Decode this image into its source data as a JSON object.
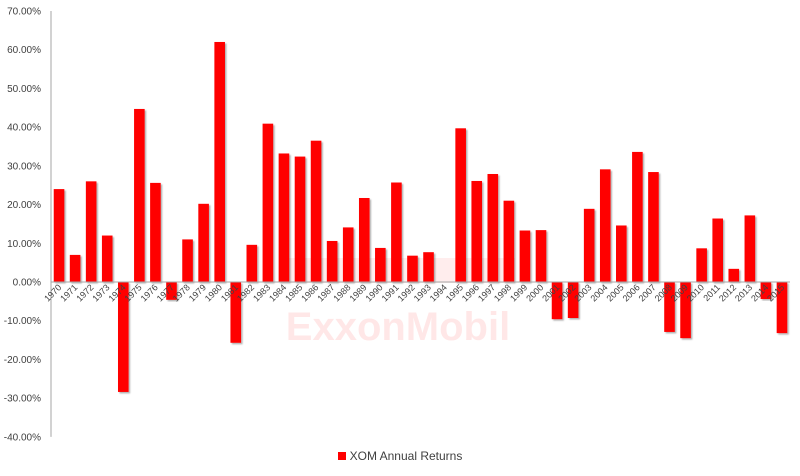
{
  "chart_data": {
    "type": "bar",
    "title": "",
    "xlabel": "",
    "ylabel": "",
    "ylim": [
      -0.4,
      0.7
    ],
    "yticks": [
      "70.00%",
      "60.00%",
      "50.00%",
      "40.00%",
      "30.00%",
      "20.00%",
      "10.00%",
      "0.00%",
      "-10.00%",
      "-20.00%",
      "-30.00%",
      "-40.00%"
    ],
    "grid": false,
    "legend_position": "bottom",
    "categories": [
      "1970",
      "1971",
      "1972",
      "1973",
      "1974",
      "1975",
      "1976",
      "1977",
      "1978",
      "1979",
      "1980",
      "1981",
      "1982",
      "1983",
      "1984",
      "1985",
      "1986",
      "1987",
      "1988",
      "1989",
      "1990",
      "1991",
      "1992",
      "1993",
      "1994",
      "1995",
      "1996",
      "1997",
      "1998",
      "1999",
      "2000",
      "2001",
      "2002",
      "2003",
      "2004",
      "2005",
      "2006",
      "2007",
      "2008",
      "2009",
      "2010",
      "2011",
      "2012",
      "2013",
      "2014",
      "2015"
    ],
    "series": [
      {
        "name": "XOM Annual Returns",
        "color": "#ff0000",
        "values": [
          0.24,
          0.07,
          0.26,
          0.12,
          -0.284,
          0.447,
          0.256,
          -0.046,
          0.11,
          0.202,
          0.62,
          -0.157,
          0.096,
          0.409,
          0.332,
          0.324,
          0.365,
          0.106,
          0.141,
          0.217,
          0.088,
          0.257,
          0.068,
          0.077,
          0.0,
          0.397,
          0.261,
          0.279,
          0.21,
          0.133,
          0.134,
          -0.096,
          -0.093,
          0.189,
          0.291,
          0.146,
          0.336,
          0.284,
          -0.129,
          -0.145,
          0.087,
          0.164,
          0.034,
          0.172,
          -0.044,
          -0.132
        ]
      }
    ],
    "watermark": "ExxonMobil"
  },
  "legend": {
    "label": "XOM Annual Returns",
    "color": "#ff0000"
  }
}
